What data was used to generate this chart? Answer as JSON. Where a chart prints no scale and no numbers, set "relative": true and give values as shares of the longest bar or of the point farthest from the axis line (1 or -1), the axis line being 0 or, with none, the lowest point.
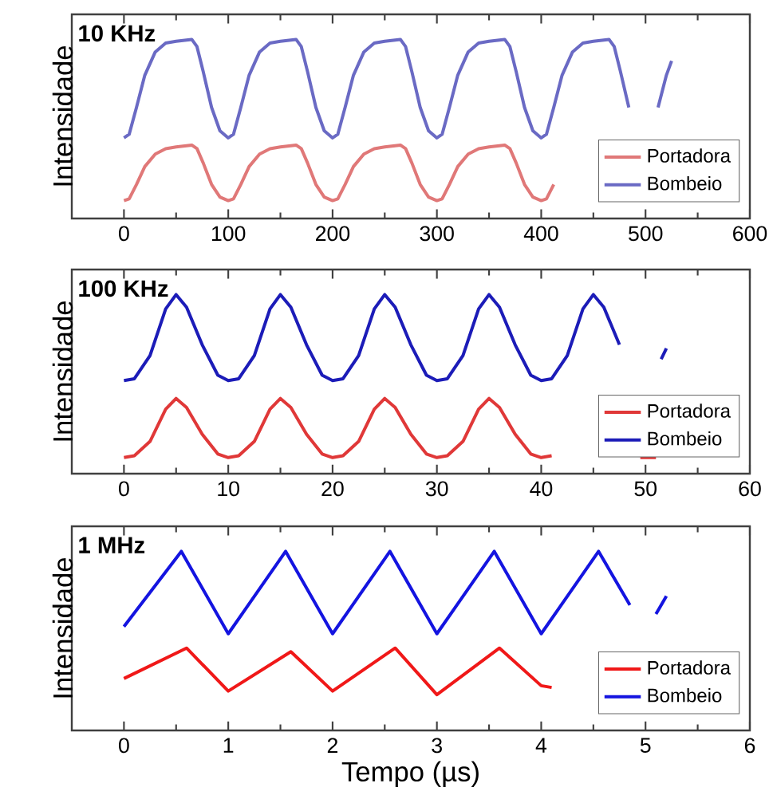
{
  "chart_data": [
    {
      "type": "line",
      "relative": true,
      "annotations": [
        "10 KHz"
      ],
      "ylabel": "Intensidade",
      "xlim": [
        -50,
        600
      ],
      "xticks": [
        0,
        100,
        200,
        300,
        400,
        500,
        600
      ],
      "legend": "bottom right",
      "grid": false,
      "marker": "none",
      "series": [
        {
          "name": "Portadora",
          "color": "#e07878",
          "x": [
            0,
            5,
            12,
            20,
            30,
            40,
            50,
            65,
            70,
            76,
            84,
            92,
            100,
            105,
            112,
            120,
            130,
            140,
            150,
            165,
            170,
            176,
            184,
            192,
            200,
            205,
            212,
            220,
            230,
            240,
            250,
            265,
            270,
            276,
            284,
            292,
            300,
            305,
            312,
            320,
            330,
            340,
            350,
            365,
            370,
            376,
            384,
            392,
            400,
            405,
            412
          ],
          "values": [
            0.1,
            0.11,
            0.19,
            0.29,
            0.36,
            0.39,
            0.4,
            0.41,
            0.39,
            0.31,
            0.19,
            0.12,
            0.1,
            0.11,
            0.19,
            0.29,
            0.36,
            0.39,
            0.4,
            0.41,
            0.39,
            0.31,
            0.19,
            0.12,
            0.1,
            0.11,
            0.19,
            0.29,
            0.36,
            0.39,
            0.4,
            0.41,
            0.39,
            0.31,
            0.19,
            0.12,
            0.1,
            0.11,
            0.19,
            0.29,
            0.36,
            0.39,
            0.4,
            0.41,
            0.39,
            0.31,
            0.19,
            0.12,
            0.1,
            0.11,
            0.19
          ]
        },
        {
          "name": "Bombeio",
          "color": "#6a6ac4",
          "x": [
            0,
            5,
            12,
            20,
            30,
            40,
            50,
            65,
            70,
            76,
            84,
            92,
            100,
            105,
            112,
            120,
            130,
            140,
            150,
            165,
            170,
            176,
            184,
            192,
            200,
            205,
            212,
            220,
            230,
            240,
            250,
            265,
            270,
            276,
            284,
            292,
            300,
            305,
            312,
            320,
            330,
            340,
            350,
            365,
            370,
            376,
            384,
            392,
            400,
            405,
            412,
            420,
            430,
            440,
            450,
            465,
            470,
            476,
            484,
            492,
            512,
            520,
            525
          ],
          "values": [
            0.45,
            0.47,
            0.62,
            0.8,
            0.93,
            0.98,
            0.99,
            1.0,
            0.96,
            0.82,
            0.62,
            0.49,
            0.45,
            0.47,
            0.62,
            0.8,
            0.93,
            0.98,
            0.99,
            1.0,
            0.96,
            0.82,
            0.62,
            0.49,
            0.45,
            0.47,
            0.62,
            0.8,
            0.93,
            0.98,
            0.99,
            1.0,
            0.96,
            0.82,
            0.62,
            0.49,
            0.45,
            0.47,
            0.62,
            0.8,
            0.93,
            0.98,
            0.99,
            1.0,
            0.96,
            0.82,
            0.62,
            0.49,
            0.45,
            0.47,
            0.62,
            0.8,
            0.93,
            0.98,
            0.99,
            1.0,
            0.96,
            0.82,
            0.62,
            null,
            0.62,
            0.8,
            0.88
          ]
        }
      ]
    },
    {
      "type": "line",
      "relative": true,
      "annotations": [
        "100 KHz"
      ],
      "ylabel": "Intensidade",
      "xlim": [
        -5,
        60
      ],
      "xticks": [
        0,
        10,
        20,
        30,
        40,
        50,
        60
      ],
      "legend": "bottom right",
      "grid": false,
      "marker": "none",
      "series": [
        {
          "name": "Portadora",
          "color": "#e03838",
          "x": [
            0,
            1,
            2.5,
            4,
            5,
            6,
            7.5,
            9,
            10,
            11,
            12.5,
            14,
            15,
            16,
            17.5,
            19,
            20,
            21,
            22.5,
            24,
            25,
            26,
            27.5,
            29,
            30,
            31,
            32.5,
            34,
            35,
            36,
            37.5,
            39,
            40,
            41,
            45,
            49.5,
            51
          ],
          "values": [
            0.09,
            0.1,
            0.18,
            0.36,
            0.42,
            0.37,
            0.22,
            0.11,
            0.09,
            0.1,
            0.18,
            0.36,
            0.42,
            0.37,
            0.22,
            0.11,
            0.09,
            0.1,
            0.18,
            0.36,
            0.42,
            0.37,
            0.22,
            0.11,
            0.09,
            0.1,
            0.18,
            0.36,
            0.42,
            0.37,
            0.22,
            0.11,
            0.09,
            0.1,
            null,
            0.09,
            0.09
          ]
        },
        {
          "name": "Bombeio",
          "color": "#1c1cb8",
          "x": [
            0,
            1,
            2.5,
            4,
            5,
            6,
            7.5,
            9,
            10,
            11,
            12.5,
            14,
            15,
            16,
            17.5,
            19,
            20,
            21,
            22.5,
            24,
            25,
            26,
            27.5,
            29,
            30,
            31,
            32.5,
            34,
            35,
            36,
            37.5,
            39,
            40,
            41,
            42.5,
            44,
            45,
            46,
            47.5,
            49,
            51.5,
            52
          ],
          "values": [
            0.52,
            0.53,
            0.66,
            0.92,
            1.0,
            0.93,
            0.72,
            0.55,
            0.52,
            0.53,
            0.66,
            0.92,
            1.0,
            0.93,
            0.72,
            0.55,
            0.52,
            0.53,
            0.66,
            0.92,
            1.0,
            0.93,
            0.72,
            0.55,
            0.52,
            0.53,
            0.66,
            0.92,
            1.0,
            0.93,
            0.72,
            0.55,
            0.52,
            0.53,
            0.66,
            0.92,
            1.0,
            0.93,
            0.72,
            null,
            0.64,
            0.7
          ]
        }
      ]
    },
    {
      "type": "line",
      "relative": true,
      "annotations": [
        "1 MHz"
      ],
      "ylabel": "Intensidade",
      "xlabel": "Tempo (µs)",
      "xlim": [
        -0.5,
        6
      ],
      "xticks": [
        0,
        1,
        2,
        3,
        4,
        5,
        6
      ],
      "legend": "bottom right",
      "grid": false,
      "marker": "none",
      "series": [
        {
          "name": "Portadora",
          "color": "#f01818",
          "x": [
            0,
            0.6,
            1.0,
            1.6,
            2.0,
            2.6,
            3.0,
            3.6,
            4.0,
            4.1
          ],
          "values": [
            0.29,
            0.46,
            0.22,
            0.44,
            0.22,
            0.46,
            0.2,
            0.46,
            0.25,
            0.24
          ]
        },
        {
          "name": "Bombeio",
          "color": "#1414e0",
          "x": [
            0,
            0.55,
            1.0,
            1.55,
            2.0,
            2.55,
            3.0,
            3.55,
            4.0,
            4.55,
            4.85,
            5.0,
            5.1,
            5.2
          ],
          "values": [
            0.58,
            1,
            0.54,
            1,
            0.54,
            1,
            0.54,
            1,
            0.54,
            1,
            0.7,
            null,
            0.65,
            0.75
          ]
        }
      ]
    }
  ]
}
